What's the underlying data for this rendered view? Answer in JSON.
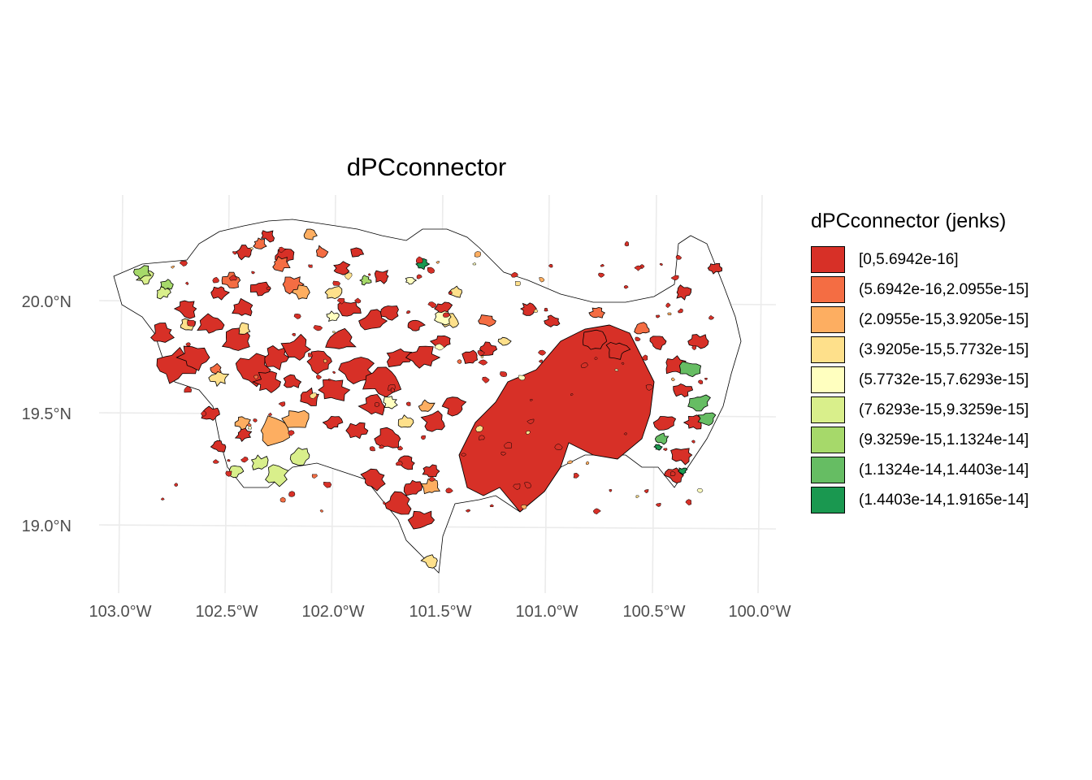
{
  "title": "dPCconnector",
  "axes": {
    "x_ticks": [
      "103.0°W",
      "102.5°W",
      "102.0°W",
      "101.5°W",
      "101.0°W",
      "100.5°W",
      "100.0°W"
    ],
    "y_ticks": [
      "20.0°N",
      "19.5°N",
      "19.0°N"
    ]
  },
  "legend": {
    "title": "dPCconnector (jenks)",
    "items": [
      {
        "label": "[0,5.6942e-16]",
        "color": "#d73027"
      },
      {
        "label": "(5.6942e-16,2.0955e-15]",
        "color": "#f46d43"
      },
      {
        "label": "(2.0955e-15,3.9205e-15]",
        "color": "#fdae61"
      },
      {
        "label": "(3.9205e-15,5.7732e-15]",
        "color": "#fee08b"
      },
      {
        "label": "(5.7732e-15,7.6293e-15]",
        "color": "#ffffbf"
      },
      {
        "label": "(7.6293e-15,9.3259e-15]",
        "color": "#d9ef8b"
      },
      {
        "label": "(9.3259e-15,1.1324e-14]",
        "color": "#a6d96a"
      },
      {
        "label": "(1.1324e-14,1.4403e-14]",
        "color": "#66bd63"
      },
      {
        "label": "(1.4403e-14,1.9165e-14]",
        "color": "#1a9850"
      }
    ]
  }
}
